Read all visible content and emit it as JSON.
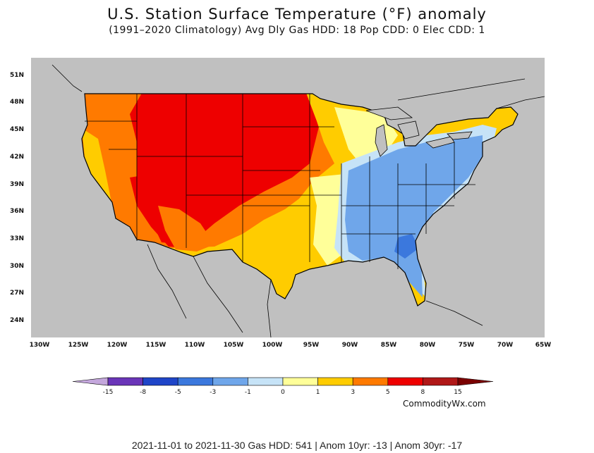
{
  "title": "U.S. Station Surface Temperature (°F) anomaly",
  "subtitle": "(1991–2020 Climatology) Avg Dly Gas HDD: 18 Pop CDD: 0 Elec CDD: 1",
  "y_ticks": [
    "51N",
    "48N",
    "45N",
    "42N",
    "39N",
    "36N",
    "33N",
    "30N",
    "27N",
    "24N"
  ],
  "x_ticks": [
    "130W",
    "125W",
    "120W",
    "115W",
    "110W",
    "105W",
    "100W",
    "95W",
    "90W",
    "85W",
    "80W",
    "75W",
    "70W",
    "65W"
  ],
  "colorbar": {
    "labels": [
      "-15",
      "-8",
      "-5",
      "-3",
      "-1",
      "0",
      "1",
      "3",
      "5",
      "8",
      "15"
    ],
    "colors": [
      "#c4a7dc",
      "#6a35b8",
      "#1f45c8",
      "#3b78dd",
      "#6fa6ea",
      "#c6e3f7",
      "#ffff99",
      "#ffcc00",
      "#ff7a00",
      "#ee0000",
      "#b01818",
      "#7a0000"
    ]
  },
  "credit": "CommodityWx.com",
  "footer": "2021-11-01 to 2021-11-30 Gas HDD: 541 | Anom 10yr: -13 | Anom 30yr: -17",
  "colors": {
    "ocean": "#c0c0c0",
    "land": "#c0c0c0"
  }
}
